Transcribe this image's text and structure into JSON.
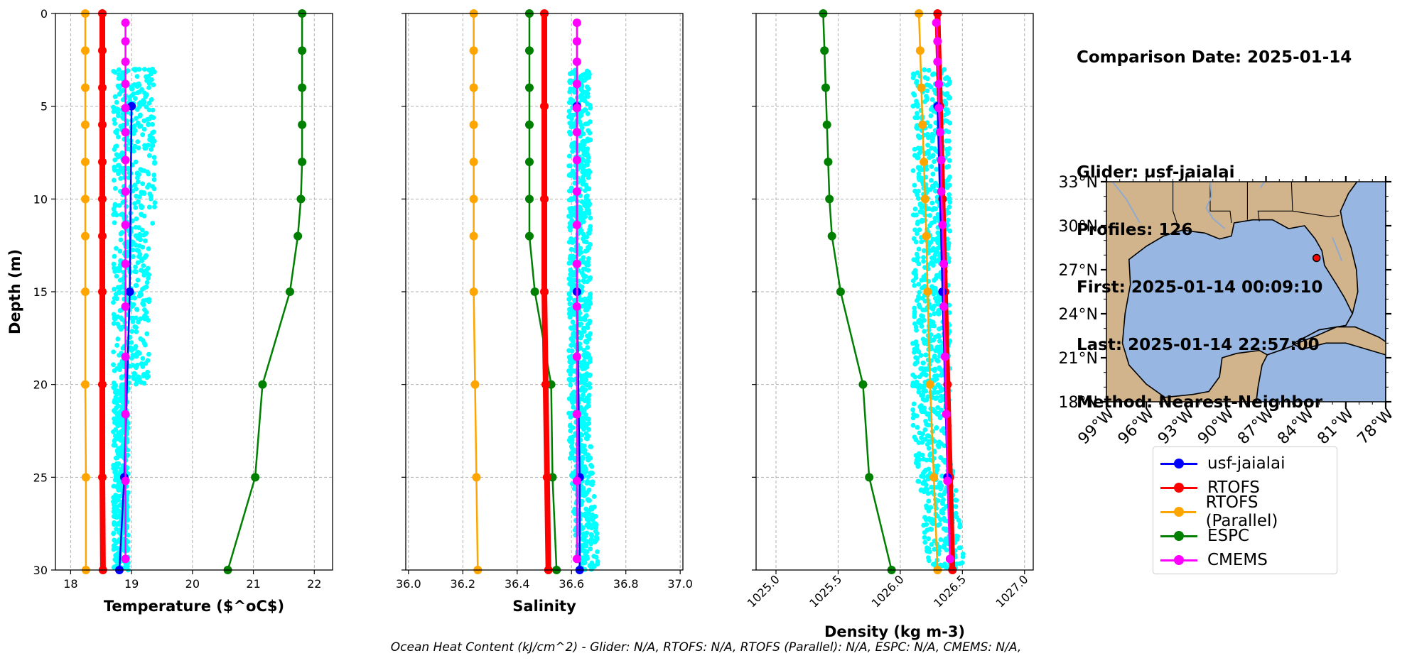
{
  "colors": {
    "glider": "#0000ff",
    "rtofs": "#ff0000",
    "rtofs_parallel": "#ffa500",
    "espc": "#008000",
    "cmems": "#ff00ff",
    "glider_scatter": "#00ffff",
    "land": "#d2b48c",
    "water": "#97b6e1"
  },
  "info": {
    "comparison_date": "Comparison Date: 2025-01-14",
    "glider": "Glider: usf-jaialai",
    "profiles": "Profiles: 126",
    "first": "First: 2025-01-14 00:09:10",
    "last": "Last: 2025-01-14 22:57:00",
    "method": "Method: Nearest-Neighbor"
  },
  "legend": [
    {
      "label": "usf-jaialai",
      "color": "#0000ff"
    },
    {
      "label": "RTOFS",
      "color": "#ff0000"
    },
    {
      "label": "RTOFS (Parallel)",
      "color": "#ffa500"
    },
    {
      "label": "ESPC",
      "color": "#008000"
    },
    {
      "label": "CMEMS",
      "color": "#ff00ff"
    }
  ],
  "footer": "Ocean Heat Content (kJ/cm^2) - Glider: N/A,  RTOFS: N/A,  RTOFS (Parallel): N/A,  ESPC: N/A,  CMEMS: N/A,",
  "chart_data": [
    {
      "type": "line",
      "xlabel": "Temperature ($^oC$)",
      "ylabel": "Depth (m)",
      "xlim": [
        17.75,
        22.3
      ],
      "ylim": [
        30,
        0
      ],
      "xticks": [
        "18",
        "19",
        "20",
        "21",
        "22"
      ],
      "yticks": [
        "0",
        "5",
        "10",
        "15",
        "20",
        "25",
        "30"
      ],
      "grid": true,
      "scatter": {
        "name": "usf-jaialai",
        "x_range": [
          18.7,
          19.4
        ],
        "depth_range": [
          3,
          30
        ]
      },
      "series": [
        {
          "name": "RTOFS (Parallel)",
          "depth": [
            0,
            2,
            4,
            6,
            8,
            10,
            12,
            15,
            20,
            25,
            30
          ],
          "values": [
            18.24,
            18.24,
            18.24,
            18.24,
            18.24,
            18.24,
            18.24,
            18.24,
            18.24,
            18.25,
            18.25
          ]
        },
        {
          "name": "RTOFS",
          "depth": [
            0,
            2,
            4,
            6,
            8,
            10,
            12,
            15,
            20,
            25,
            30
          ],
          "values": [
            18.52,
            18.52,
            18.52,
            18.52,
            18.52,
            18.52,
            18.52,
            18.52,
            18.52,
            18.52,
            18.53
          ]
        },
        {
          "name": "usf-jaialai",
          "depth": [
            5,
            15,
            25,
            30
          ],
          "values": [
            19.0,
            18.97,
            18.88,
            18.8
          ]
        },
        {
          "name": "CMEMS",
          "depth": [
            0.5,
            1.5,
            2.6,
            3.8,
            5.1,
            6.4,
            7.9,
            9.6,
            11.4,
            13.5,
            15.8,
            18.5,
            21.6,
            25.2,
            29.4
          ],
          "values": [
            18.9,
            18.9,
            18.9,
            18.9,
            18.9,
            18.9,
            18.9,
            18.9,
            18.9,
            18.9,
            18.9,
            18.9,
            18.9,
            18.9,
            18.9
          ]
        },
        {
          "name": "ESPC",
          "depth": [
            0,
            2,
            4,
            6,
            8,
            10,
            12,
            15,
            20,
            25,
            30
          ],
          "values": [
            21.8,
            21.8,
            21.8,
            21.8,
            21.8,
            21.78,
            21.73,
            21.6,
            21.15,
            21.03,
            20.58
          ]
        }
      ]
    },
    {
      "type": "line",
      "xlabel": "Salinity",
      "ylabel": "",
      "xlim": [
        35.99,
        37.01
      ],
      "ylim": [
        30,
        0
      ],
      "xticks": [
        "36.0",
        "36.2",
        "36.4",
        "36.6",
        "36.8",
        "37.0"
      ],
      "grid": true,
      "scatter": {
        "name": "usf-jaialai",
        "x_range": [
          36.59,
          36.67
        ],
        "depth_range": [
          3,
          30
        ]
      },
      "series": [
        {
          "name": "RTOFS (Parallel)",
          "depth": [
            0,
            2,
            4,
            6,
            8,
            10,
            12,
            15,
            20,
            25,
            30
          ],
          "values": [
            36.24,
            36.24,
            36.24,
            36.24,
            36.24,
            36.24,
            36.24,
            36.24,
            36.245,
            36.25,
            36.255
          ]
        },
        {
          "name": "ESPC",
          "depth": [
            0,
            2,
            4,
            6,
            8,
            10,
            12,
            15,
            20,
            25,
            30
          ],
          "values": [
            36.445,
            36.445,
            36.445,
            36.445,
            36.445,
            36.445,
            36.445,
            36.465,
            36.525,
            36.53,
            36.545
          ]
        },
        {
          "name": "RTOFS",
          "depth": [
            0,
            5,
            10,
            15,
            20,
            25,
            30
          ],
          "values": [
            36.5,
            36.5,
            36.5,
            36.5,
            36.505,
            36.51,
            36.515
          ]
        },
        {
          "name": "usf-jaialai",
          "depth": [
            5,
            15,
            25,
            30
          ],
          "values": [
            36.62,
            36.62,
            36.63,
            36.63
          ]
        },
        {
          "name": "CMEMS",
          "depth": [
            0.5,
            1.5,
            2.6,
            3.8,
            5.1,
            6.4,
            7.9,
            9.6,
            11.4,
            13.5,
            15.8,
            18.5,
            21.6,
            25.2,
            29.4
          ],
          "values": [
            36.62,
            36.62,
            36.62,
            36.62,
            36.62,
            36.62,
            36.62,
            36.62,
            36.62,
            36.62,
            36.62,
            36.62,
            36.62,
            36.62,
            36.62
          ]
        }
      ]
    },
    {
      "type": "line",
      "xlabel": "Density (kg m-3)",
      "ylabel": "",
      "xlim": [
        1024.84,
        1027.07
      ],
      "ylim": [
        30,
        0
      ],
      "xticks": [
        "1025.0",
        "1025.5",
        "1026.0",
        "1026.5",
        "1027.0"
      ],
      "grid": true,
      "scatter": {
        "name": "usf-jaialai",
        "x_range": [
          1026.1,
          1026.4
        ],
        "depth_range": [
          3,
          30
        ]
      },
      "series": [
        {
          "name": "ESPC",
          "depth": [
            0,
            2,
            4,
            6,
            8,
            10,
            12,
            15,
            20,
            25,
            30
          ],
          "values": [
            1025.38,
            1025.39,
            1025.4,
            1025.41,
            1025.42,
            1025.43,
            1025.45,
            1025.52,
            1025.7,
            1025.75,
            1025.93
          ]
        },
        {
          "name": "RTOFS (Parallel)",
          "depth": [
            0,
            2,
            4,
            6,
            8,
            10,
            12,
            15,
            20,
            25,
            30
          ],
          "values": [
            1026.15,
            1026.16,
            1026.17,
            1026.18,
            1026.19,
            1026.2,
            1026.21,
            1026.22,
            1026.24,
            1026.27,
            1026.3
          ]
        },
        {
          "name": "RTOFS",
          "depth": [
            0,
            5,
            10,
            15,
            20,
            25,
            30
          ],
          "values": [
            1026.3,
            1026.32,
            1026.34,
            1026.36,
            1026.38,
            1026.4,
            1026.42
          ]
        },
        {
          "name": "usf-jaialai",
          "depth": [
            5,
            15,
            25
          ],
          "values": [
            1026.3,
            1026.34,
            1026.38
          ]
        },
        {
          "name": "CMEMS",
          "depth": [
            0.5,
            1.5,
            2.6,
            3.8,
            5.1,
            6.4,
            7.9,
            9.6,
            11.4,
            13.5,
            15.8,
            18.5,
            21.6,
            25.2,
            29.4
          ],
          "values": [
            1026.29,
            1026.3,
            1026.3,
            1026.31,
            1026.31,
            1026.32,
            1026.33,
            1026.33,
            1026.34,
            1026.35,
            1026.35,
            1026.36,
            1026.37,
            1026.38,
            1026.4
          ]
        }
      ]
    }
  ],
  "map": {
    "lon_ticks": [
      "99°W",
      "96°W",
      "93°W",
      "90°W",
      "87°W",
      "84°W",
      "81°W",
      "78°W"
    ],
    "lat_ticks": [
      "33°N",
      "30°N",
      "27°N",
      "24°N",
      "21°N",
      "18°N"
    ],
    "lon_range": [
      -99,
      -78
    ],
    "lat_range": [
      18,
      33
    ],
    "glider_location": {
      "lon": -83.2,
      "lat": 27.8
    }
  }
}
